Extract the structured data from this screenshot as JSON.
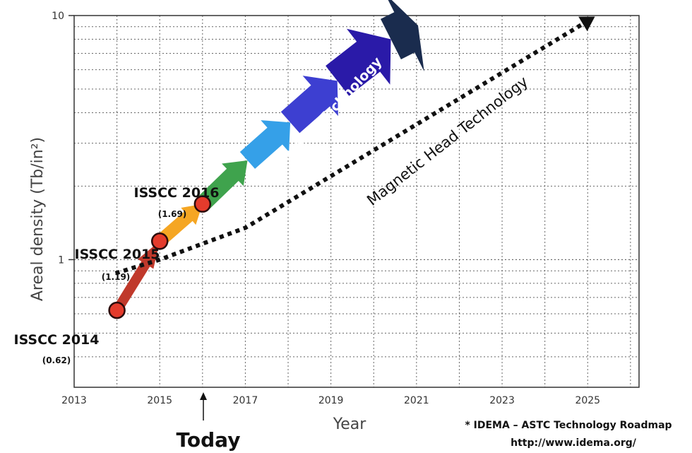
{
  "chart_data": {
    "type": "line",
    "xlabel": "Year",
    "ylabel": "Areal density (Tb/in²)",
    "x_ticks": [
      "2013",
      "2015",
      "2017",
      "2019",
      "2021",
      "2023",
      "2025"
    ],
    "xlim": [
      2013,
      2026.2
    ],
    "ylim": [
      0.3,
      10
    ],
    "y_scale": "log",
    "y_ticks": [
      "1",
      "10"
    ],
    "grid": true,
    "milestones": [
      {
        "name": "ISSCC 2014",
        "value_label": "(0.62)",
        "x": 2014,
        "y": 0.62
      },
      {
        "name": "ISSCC 2015",
        "value_label": "(1.19)",
        "x": 2015,
        "y": 1.19
      },
      {
        "name": "ISSCC 2016",
        "value_label": "(1.69)",
        "x": 2016,
        "y": 1.69
      }
    ],
    "magnetic_head": {
      "label": "Magnetic Head Technology",
      "points": [
        [
          2014,
          0.88
        ],
        [
          2015,
          1.0
        ],
        [
          2017,
          1.35
        ],
        [
          2025,
          9.5
        ]
      ]
    },
    "vnand": {
      "label": "V-NAND Technology",
      "colors": [
        "#c0392b",
        "#f5a623",
        "#3fa34d",
        "#35a0e8",
        "#3d3fd1",
        "#2a1aa8",
        "#1a2c4e"
      ]
    },
    "annotations": {
      "today": "Today",
      "today_x": 2016
    }
  },
  "source": {
    "line1": "* IDEMA – ASTC Technology Roadmap",
    "line2": "http://www.idema.org/"
  },
  "colors": {
    "marker_fill": "#e43b2c",
    "marker_stroke": "#2b0b0b"
  }
}
